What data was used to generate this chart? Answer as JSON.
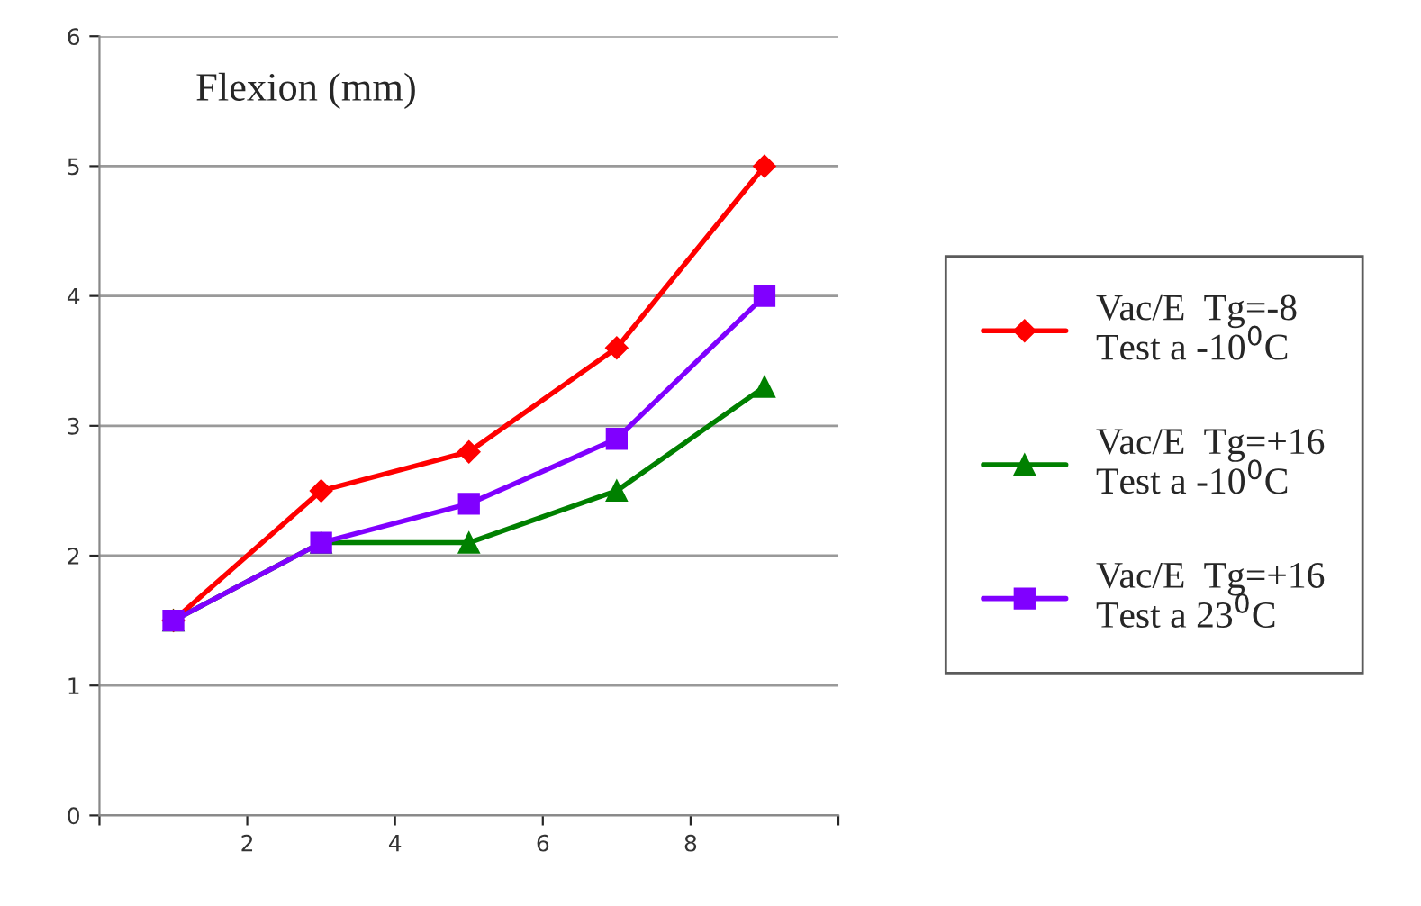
{
  "chart_data": {
    "type": "line",
    "title": "Flexion (mm)",
    "x": [
      1,
      3,
      5,
      7,
      9
    ],
    "series": [
      {
        "name": "Vac/E  Tg=-8\nTest a -10$^{0}$C",
        "color": "#ff0000",
        "marker": "diamond",
        "values": [
          1.5,
          2.5,
          2.8,
          3.6,
          5.0
        ]
      },
      {
        "name": "Vac/E  Tg=+16\nTest a -10$^{0}$C",
        "color": "#008000",
        "marker": "triangle",
        "values": [
          1.5,
          2.1,
          2.1,
          2.5,
          3.3
        ]
      },
      {
        "name": "Vac/E  Tg=+16\nTest a 23$^{0}$C",
        "color": "#8000ff",
        "marker": "square",
        "values": [
          1.5,
          2.1,
          2.4,
          2.9,
          4.0
        ]
      }
    ],
    "xlim": [
      0,
      10
    ],
    "xticks": [
      {
        "value": 0,
        "label": null
      },
      2,
      4,
      6,
      8,
      {
        "value": 10,
        "label": null
      }
    ],
    "ylim": [
      0,
      6
    ],
    "yticks": [
      0,
      1,
      2,
      3,
      4,
      5,
      6
    ],
    "grid": "y",
    "legend": "right",
    "line_style": "solid"
  }
}
